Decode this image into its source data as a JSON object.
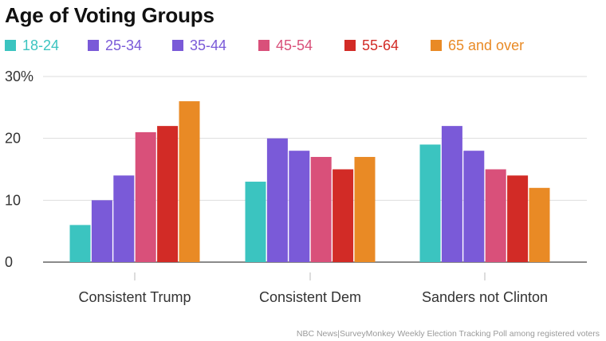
{
  "chart_data": {
    "type": "bar",
    "title": "Age of Voting Groups",
    "categories": [
      "Consistent Trump",
      "Consistent Dem",
      "Sanders not Clinton"
    ],
    "series": [
      {
        "name": "18-24",
        "color": "#3bc4c0",
        "values": [
          6,
          13,
          19
        ]
      },
      {
        "name": "25-34",
        "color": "#7a5ad8",
        "values": [
          10,
          20,
          22
        ]
      },
      {
        "name": "35-44",
        "color": "#7a5ad8",
        "values": [
          14,
          18,
          18
        ]
      },
      {
        "name": "45-54",
        "color": "#d9507a",
        "values": [
          21,
          17,
          15
        ]
      },
      {
        "name": "55-64",
        "color": "#d22b26",
        "values": [
          22,
          15,
          14
        ]
      },
      {
        "name": "65 and over",
        "color": "#e98a25",
        "values": [
          26,
          17,
          12
        ]
      }
    ],
    "y_ticks": [
      {
        "value": 0,
        "label": "0"
      },
      {
        "value": 10,
        "label": "10"
      },
      {
        "value": 20,
        "label": "20"
      },
      {
        "value": 30,
        "label": "30%"
      }
    ],
    "ylim": [
      0,
      30
    ],
    "grid": true,
    "legend_position": "top-left",
    "xlabel": "",
    "ylabel": ""
  },
  "source": "NBC News|SurveyMonkey Weekly Election Tracking Poll among registered voters"
}
